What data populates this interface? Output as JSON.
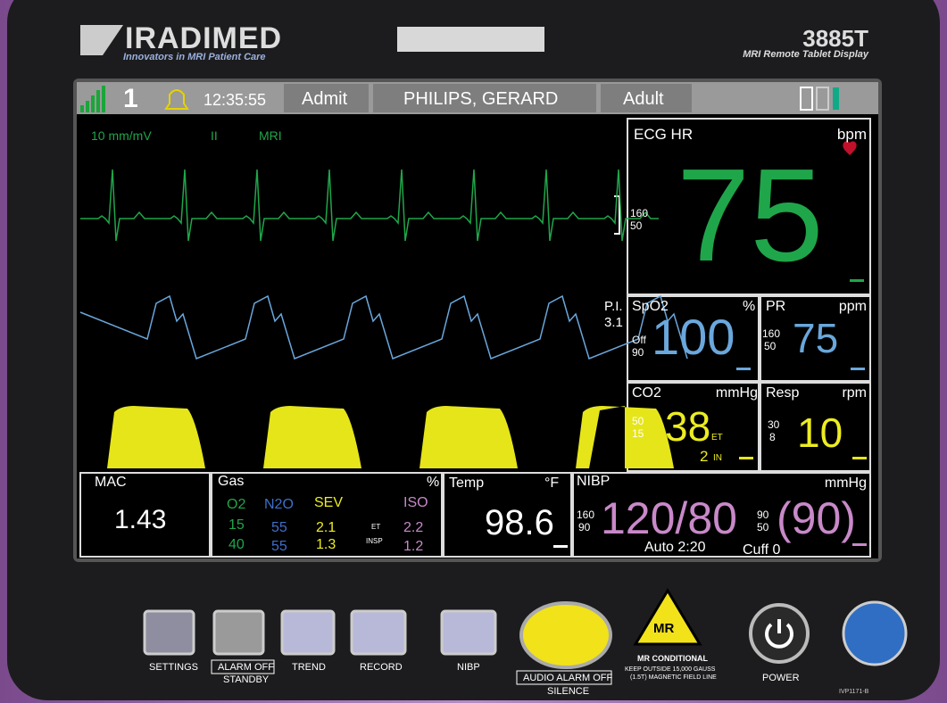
{
  "device": {
    "brand": "IRADIMED",
    "tagline": "Innovators in MRI Patient Care",
    "model": "3885T",
    "model_subtitle": "MRI Remote Tablet Display",
    "part_number": "IVP1171-B"
  },
  "status_bar": {
    "bed": "1",
    "time": "12:35:55",
    "admit": "Admit",
    "patient": "PHILIPS, GERARD",
    "category": "Adult"
  },
  "waveforms": {
    "ecg_scale": "10 mm/mV",
    "ecg_lead": "II",
    "ecg_filter": "MRI",
    "pi_label": "P.I.",
    "pi_value": "3.1"
  },
  "ecg_hr": {
    "label": "ECG HR",
    "unit": "bpm",
    "high": "160",
    "low": "50",
    "value": "75"
  },
  "spo2": {
    "label": "SpO2",
    "unit": "%",
    "high": "Off",
    "low": "90",
    "value": "100"
  },
  "pr": {
    "label": "PR",
    "unit": "ppm",
    "high": "160",
    "low": "50",
    "value": "75"
  },
  "co2": {
    "label": "CO2",
    "unit": "mmHg",
    "high": "50",
    "low": "15",
    "value": "38",
    "et_label": "ET",
    "inspired": "2",
    "in_label": "IN"
  },
  "resp": {
    "label": "Resp",
    "unit": "rpm",
    "high": "30",
    "low": "8",
    "value": "10"
  },
  "mac": {
    "label": "MAC",
    "value": "1.43"
  },
  "gas": {
    "label": "Gas",
    "unit": "%",
    "headers": [
      "O2",
      "N2O",
      "SEV",
      "ISO"
    ],
    "et_row": [
      "15",
      "55",
      "2.1",
      "2.2"
    ],
    "insp_row": [
      "40",
      "55",
      "1.3",
      "1.2"
    ],
    "et_label": "ET",
    "insp_label": "INSP"
  },
  "temp": {
    "label": "Temp",
    "unit": "°F",
    "value": "98.6"
  },
  "nibp": {
    "label": "NIBP",
    "unit": "mmHg",
    "sys_high": "160",
    "sys_low": "90",
    "value": "120/80",
    "map_high": "90",
    "map_low": "50",
    "map": "(90)",
    "mode": "Auto 2:20",
    "cuff": "Cuff 0"
  },
  "buttons": {
    "settings": "SETTINGS",
    "alarm_off": "ALARM OFF",
    "standby": "STANDBY",
    "trend": "TREND",
    "record": "RECORD",
    "nibp": "NIBP",
    "audio_alarm_off": "AUDIO ALARM OFF",
    "silence": "SILENCE",
    "mr_badge": "MR",
    "mr_conditional": "MR CONDITIONAL",
    "mr_line1": "KEEP OUTSIDE 15,000 GAUSS",
    "mr_line2": "(1.5T) MAGNETIC FIELD LINE",
    "power": "POWER"
  }
}
